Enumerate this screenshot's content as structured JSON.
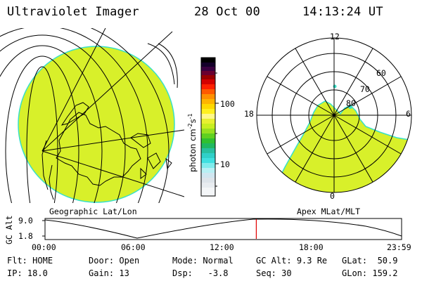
{
  "header": {
    "instrument": "Ultraviolet Imager",
    "date": "28 Oct 00",
    "time": "14:13:24 UT"
  },
  "colors": {
    "uv_fill": "#d8f02a",
    "uv_edge": "#37e0c8",
    "time_marker": "#e00000"
  },
  "colorbar": {
    "unit_label": "photon cm",
    "unit_exp1": "-2",
    "unit_s": "s",
    "unit_exp2": "-1",
    "tick_100": "100",
    "tick_10": "10",
    "scale": "log"
  },
  "geo_panel": {
    "caption": "Geographic Lat/Lon"
  },
  "polar_panel": {
    "caption": "Apex MLat/MLT",
    "mlt_labels": {
      "top": "12",
      "left": "18",
      "right": "6",
      "bottom": "0"
    },
    "lat_labels": [
      "60",
      "70",
      "80"
    ]
  },
  "altitude_plot": {
    "ylabel": "GC Alt",
    "y_max_label": "9.0",
    "y_min_label": "1.8",
    "x_ticks": [
      "00:00",
      "06:00",
      "12:00",
      "18:00",
      "23:59"
    ],
    "marker_time_hours": 14.22
  },
  "status": {
    "flt_label": "Flt:",
    "flt_value": "HOME",
    "ip_label": "IP:",
    "ip_value": "18.0",
    "door_label": "Door:",
    "door_value": "Open",
    "gain_label": "Gain:",
    "gain_value": "13",
    "mode_label": "Mode:",
    "mode_value": "Normal",
    "dsp_label": "Dsp:",
    "dsp_value": "-3.8",
    "gcalt_label": "GC Alt:",
    "gcalt_value": "9.3 Re",
    "seq_label": "Seq:",
    "seq_value": "30",
    "glat_label": "GLat:",
    "glat_value": "50.9",
    "glon_label": "GLon:",
    "glon_value": "159.2"
  }
}
